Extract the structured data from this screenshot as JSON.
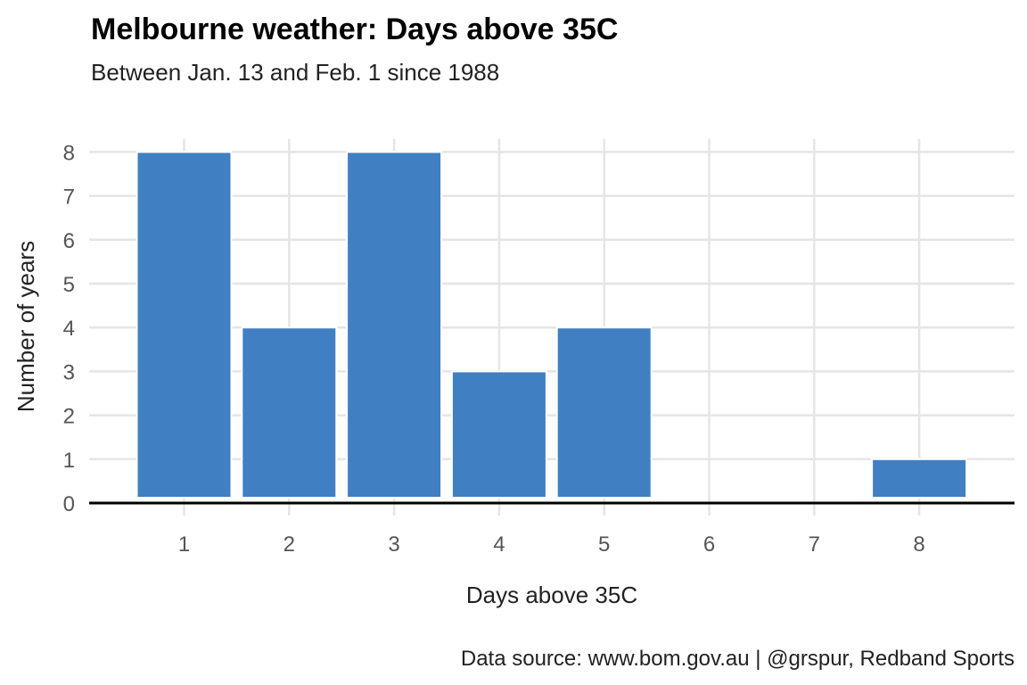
{
  "chart_data": {
    "type": "bar",
    "title": "Melbourne weather: Days above 35C",
    "subtitle": "Between Jan. 13 and Feb. 1 since 1988",
    "xlabel": "Days above 35C",
    "ylabel": "Number of years",
    "caption": "Data source: www.bom.gov.au | @grspur, Redband Sports",
    "categories": [
      "1",
      "2",
      "3",
      "4",
      "5",
      "6",
      "7",
      "8"
    ],
    "values": [
      8,
      4,
      8,
      3,
      4,
      0,
      0,
      1
    ],
    "yticks": [
      "0",
      "1",
      "2",
      "3",
      "4",
      "5",
      "6",
      "7",
      "8"
    ],
    "ylim": [
      0,
      8.3
    ],
    "grid": true,
    "legend": "none",
    "colors": {
      "bar": "#4080C2",
      "grid": "#E5E5E5",
      "baseline": "#000000"
    }
  }
}
